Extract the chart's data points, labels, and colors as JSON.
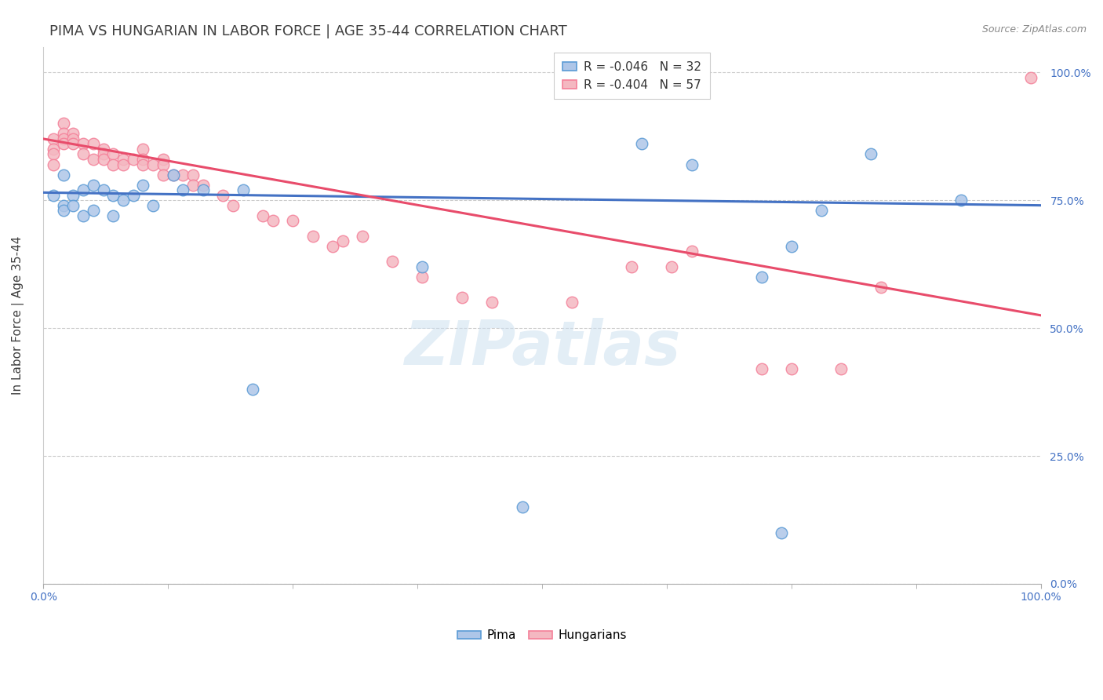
{
  "title": "PIMA VS HUNGARIAN IN LABOR FORCE | AGE 35-44 CORRELATION CHART",
  "source_text": "Source: ZipAtlas.com",
  "ylabel": "In Labor Force | Age 35-44",
  "xlim": [
    0.0,
    1.0
  ],
  "ylim": [
    0.0,
    1.05
  ],
  "ytick_labels": [
    "0.0%",
    "25.0%",
    "50.0%",
    "75.0%",
    "100.0%"
  ],
  "ytick_values": [
    0.0,
    0.25,
    0.5,
    0.75,
    1.0
  ],
  "xtick_labels": [
    "0.0%",
    "100.0%"
  ],
  "xtick_values": [
    0.0,
    1.0
  ],
  "legend_entries": [
    {
      "label": "R = -0.046   N = 32",
      "color": "#aec6e8"
    },
    {
      "label": "R = -0.404   N = 57",
      "color": "#f4b8c1"
    }
  ],
  "legend_bottom": [
    "Pima",
    "Hungarians"
  ],
  "pima_color": "#aec6e8",
  "hungarian_color": "#f4b8c1",
  "pima_edge_color": "#5b9bd5",
  "hungarian_edge_color": "#f48099",
  "trend_pima_color": "#4472c4",
  "trend_hungarian_color": "#e84c6b",
  "background_color": "#ffffff",
  "grid_color": "#cccccc",
  "title_color": "#404040",
  "axis_label_color": "#404040",
  "right_label_color": "#4472c4",
  "watermark": "ZIPatlas",
  "pima_x": [
    0.01,
    0.02,
    0.02,
    0.02,
    0.03,
    0.03,
    0.04,
    0.04,
    0.05,
    0.05,
    0.06,
    0.07,
    0.07,
    0.08,
    0.09,
    0.1,
    0.11,
    0.13,
    0.14,
    0.16,
    0.2,
    0.21,
    0.38,
    0.6,
    0.65,
    0.72,
    0.75,
    0.78,
    0.83,
    0.92,
    0.48,
    0.74
  ],
  "pima_y": [
    0.76,
    0.8,
    0.74,
    0.73,
    0.76,
    0.74,
    0.77,
    0.72,
    0.78,
    0.73,
    0.77,
    0.76,
    0.72,
    0.75,
    0.76,
    0.78,
    0.74,
    0.8,
    0.77,
    0.77,
    0.77,
    0.38,
    0.62,
    0.86,
    0.82,
    0.6,
    0.66,
    0.73,
    0.84,
    0.75,
    0.15,
    0.1
  ],
  "hungarian_x": [
    0.01,
    0.01,
    0.01,
    0.01,
    0.02,
    0.02,
    0.02,
    0.02,
    0.03,
    0.03,
    0.03,
    0.04,
    0.04,
    0.05,
    0.05,
    0.06,
    0.06,
    0.06,
    0.07,
    0.07,
    0.08,
    0.08,
    0.09,
    0.1,
    0.1,
    0.1,
    0.11,
    0.12,
    0.12,
    0.12,
    0.13,
    0.14,
    0.15,
    0.15,
    0.16,
    0.18,
    0.19,
    0.22,
    0.23,
    0.25,
    0.27,
    0.29,
    0.3,
    0.32,
    0.35,
    0.38,
    0.42,
    0.45,
    0.53,
    0.59,
    0.63,
    0.65,
    0.72,
    0.75,
    0.8,
    0.84,
    0.99
  ],
  "hungarian_y": [
    0.87,
    0.85,
    0.84,
    0.82,
    0.9,
    0.88,
    0.87,
    0.86,
    0.88,
    0.87,
    0.86,
    0.86,
    0.84,
    0.86,
    0.83,
    0.85,
    0.84,
    0.83,
    0.84,
    0.82,
    0.83,
    0.82,
    0.83,
    0.85,
    0.83,
    0.82,
    0.82,
    0.83,
    0.82,
    0.8,
    0.8,
    0.8,
    0.8,
    0.78,
    0.78,
    0.76,
    0.74,
    0.72,
    0.71,
    0.71,
    0.68,
    0.66,
    0.67,
    0.68,
    0.63,
    0.6,
    0.56,
    0.55,
    0.55,
    0.62,
    0.62,
    0.65,
    0.42,
    0.42,
    0.42,
    0.58,
    0.99
  ],
  "pima_trend_x": [
    0.0,
    1.0
  ],
  "pima_trend_y": [
    0.765,
    0.74
  ],
  "hungarian_trend_x": [
    0.0,
    1.0
  ],
  "hungarian_trend_y": [
    0.87,
    0.525
  ],
  "marker_size": 110,
  "marker_linewidth": 1.0,
  "title_fontsize": 13,
  "label_fontsize": 11,
  "tick_fontsize": 10,
  "legend_fontsize": 11
}
